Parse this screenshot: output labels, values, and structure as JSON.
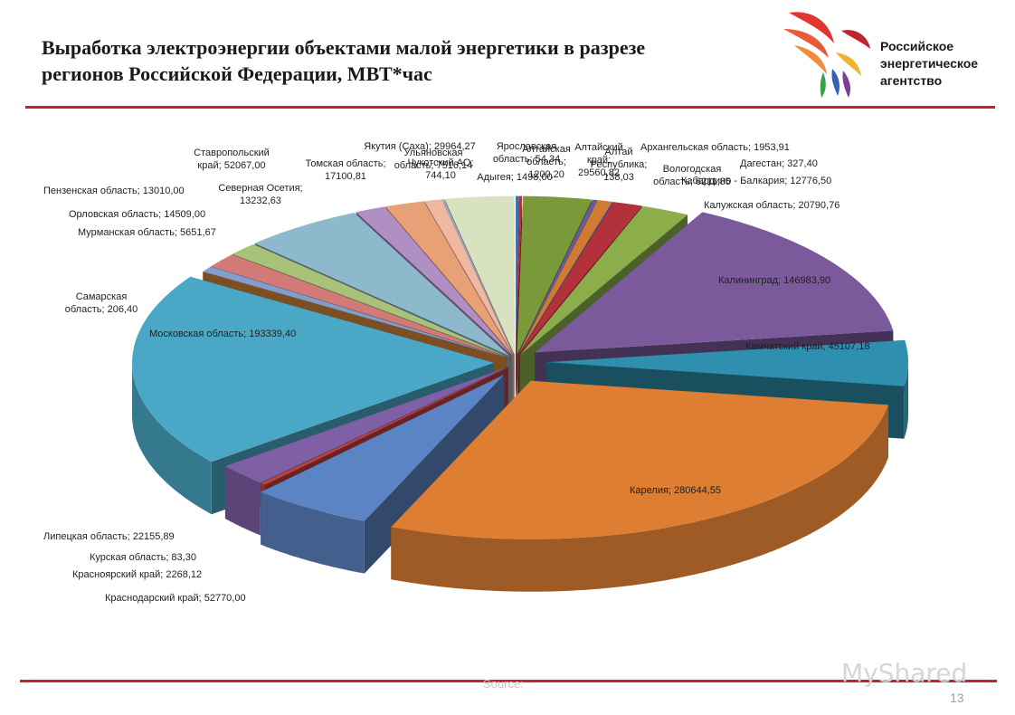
{
  "title": "Выработка электроэнергии объектами малой энергетики в разрезе регионов  Российской Федерации, МВТ*час",
  "agency_name": [
    "Российское",
    "энергетическое",
    "агентство"
  ],
  "source_label": "Source:",
  "page_number": "13",
  "watermark": "MyShared",
  "colors": {
    "accent_red": "#c0242c"
  },
  "chart_data": {
    "type": "pie",
    "title": "",
    "series": [
      {
        "values": [
          {
            "label": "Адыгея; 1498,00",
            "value": 1498.0,
            "color": "#3a6fb0"
          },
          {
            "label": "Алтайская область; 1200,20",
            "value": 1200.2,
            "color": "#b3313a"
          },
          {
            "label": "Алтайский край; 29560,82",
            "value": 29560.82,
            "color": "#7a9a3a"
          },
          {
            "label": "Алтай Республика; 138,03",
            "value": 138.03,
            "color": "#3f7fa8"
          },
          {
            "label": "Архангельская область; 1953,91",
            "value": 1953.91,
            "color": "#6a5a9a"
          },
          {
            "label": "Вологодская область; 6211,85",
            "value": 6211.85,
            "color": "#d07b31"
          },
          {
            "label": "Дагестан; 327,40",
            "value": 327.4,
            "color": "#3a6fb0"
          },
          {
            "label": "Кабардино - Балкария; 12776,50",
            "value": 12776.5,
            "color": "#b3313a"
          },
          {
            "label": "Калужская область; 20790,76",
            "value": 20790.76,
            "color": "#8bae4a"
          },
          {
            "label": "Калининград; 146983,90",
            "value": 146983.9,
            "color": "#7b5a9c"
          },
          {
            "label": "Камчатский край; 45107,18",
            "value": 45107.18,
            "color": "#2f8fae"
          },
          {
            "label": "Карелия; 280644,55",
            "value": 280644.55,
            "color": "#dd7e33"
          },
          {
            "label": "Краснодарский край; 52770,00",
            "value": 52770.0,
            "color": "#5b84c4"
          },
          {
            "label": "Красноярский край; 2268,12",
            "value": 2268.12,
            "color": "#c04040"
          },
          {
            "label": "Курская область; 83,30",
            "value": 83.3,
            "color": "#8aa84a"
          },
          {
            "label": "Липецкая область; 22155,89",
            "value": 22155.89,
            "color": "#7f5fa6"
          },
          {
            "label": "Московская область; 193339,40",
            "value": 193339.4,
            "color": "#4aa8c6"
          },
          {
            "label": "Самарская область; 206,40",
            "value": 206.4,
            "color": "#e09040"
          },
          {
            "label": "Мурманская область; 5651,67",
            "value": 5651.67,
            "color": "#7e9fd0"
          },
          {
            "label": "Орловская область; 14509,00",
            "value": 14509.0,
            "color": "#d17a78"
          },
          {
            "label": "Пензенская область; 13010,00",
            "value": 13010.0,
            "color": "#a8c27a"
          },
          {
            "label": "Ставропольский край; 52067,00",
            "value": 52067.0,
            "color": "#8eb8cc"
          },
          {
            "label": "Северная Осетия; 13232,63",
            "value": 13232.63,
            "color": "#b08fc4"
          },
          {
            "label": "Томская область; 17100,81",
            "value": 17100.81,
            "color": "#e8a076"
          },
          {
            "label": "Ульяновская область; 7516,14",
            "value": 7516.14,
            "color": "#f0b8a0"
          },
          {
            "label": "Чукотский АО; 744,10",
            "value": 744.1,
            "color": "#9fb0d8"
          },
          {
            "label": "Якутия (Саха); 29964,27",
            "value": 29964.27,
            "color": "#d8e2c0"
          },
          {
            "label": "Ярославская область; 54,34",
            "value": 54.34,
            "color": "#b4c8e4"
          }
        ]
      }
    ],
    "label_lines": [
      [
        "Адыгея; 1498,00"
      ],
      [
        "Алтайская",
        "область;",
        "1200,20"
      ],
      [
        "Алтайский",
        "край;",
        "29560,82"
      ],
      [
        "Алтай",
        "Республика;",
        "138,03"
      ],
      [
        "Архангельская область; 1953,91"
      ],
      [
        "Вологодская",
        "область; 6211,85"
      ],
      [
        "Дагестан; 327,40"
      ],
      [
        "Кабардино - Балкария; 12776,50"
      ],
      [
        "Калужская область; 20790,76"
      ],
      [
        "Калининград; 146983,90"
      ],
      [
        "Камчатский край; 45107,18"
      ],
      [
        "Карелия; 280644,55"
      ],
      [
        "Краснодарский край; 52770,00"
      ],
      [
        "Красноярский край; 2268,12"
      ],
      [
        "Курская область; 83,30"
      ],
      [
        "Липецкая область; 22155,89"
      ],
      [
        "Московская область; 193339,40"
      ],
      [
        "Самарская",
        "область; 206,40"
      ],
      [
        "Мурманская область; 5651,67"
      ],
      [
        "Орловская область; 14509,00"
      ],
      [
        "Пензенская область; 13010,00"
      ],
      [
        "Ставропольский",
        "край; 52067,00"
      ],
      [
        "Северная Осетия;",
        "13232,63"
      ],
      [
        "Томская область;",
        "17100,81"
      ],
      [
        "Ульяновская",
        "область; 7516,14"
      ],
      [
        "Чукотский АО;",
        "744,10"
      ],
      [
        "Якутия (Саха); 29964,27"
      ],
      [
        "Ярославская",
        "область; 54,34"
      ]
    ]
  }
}
